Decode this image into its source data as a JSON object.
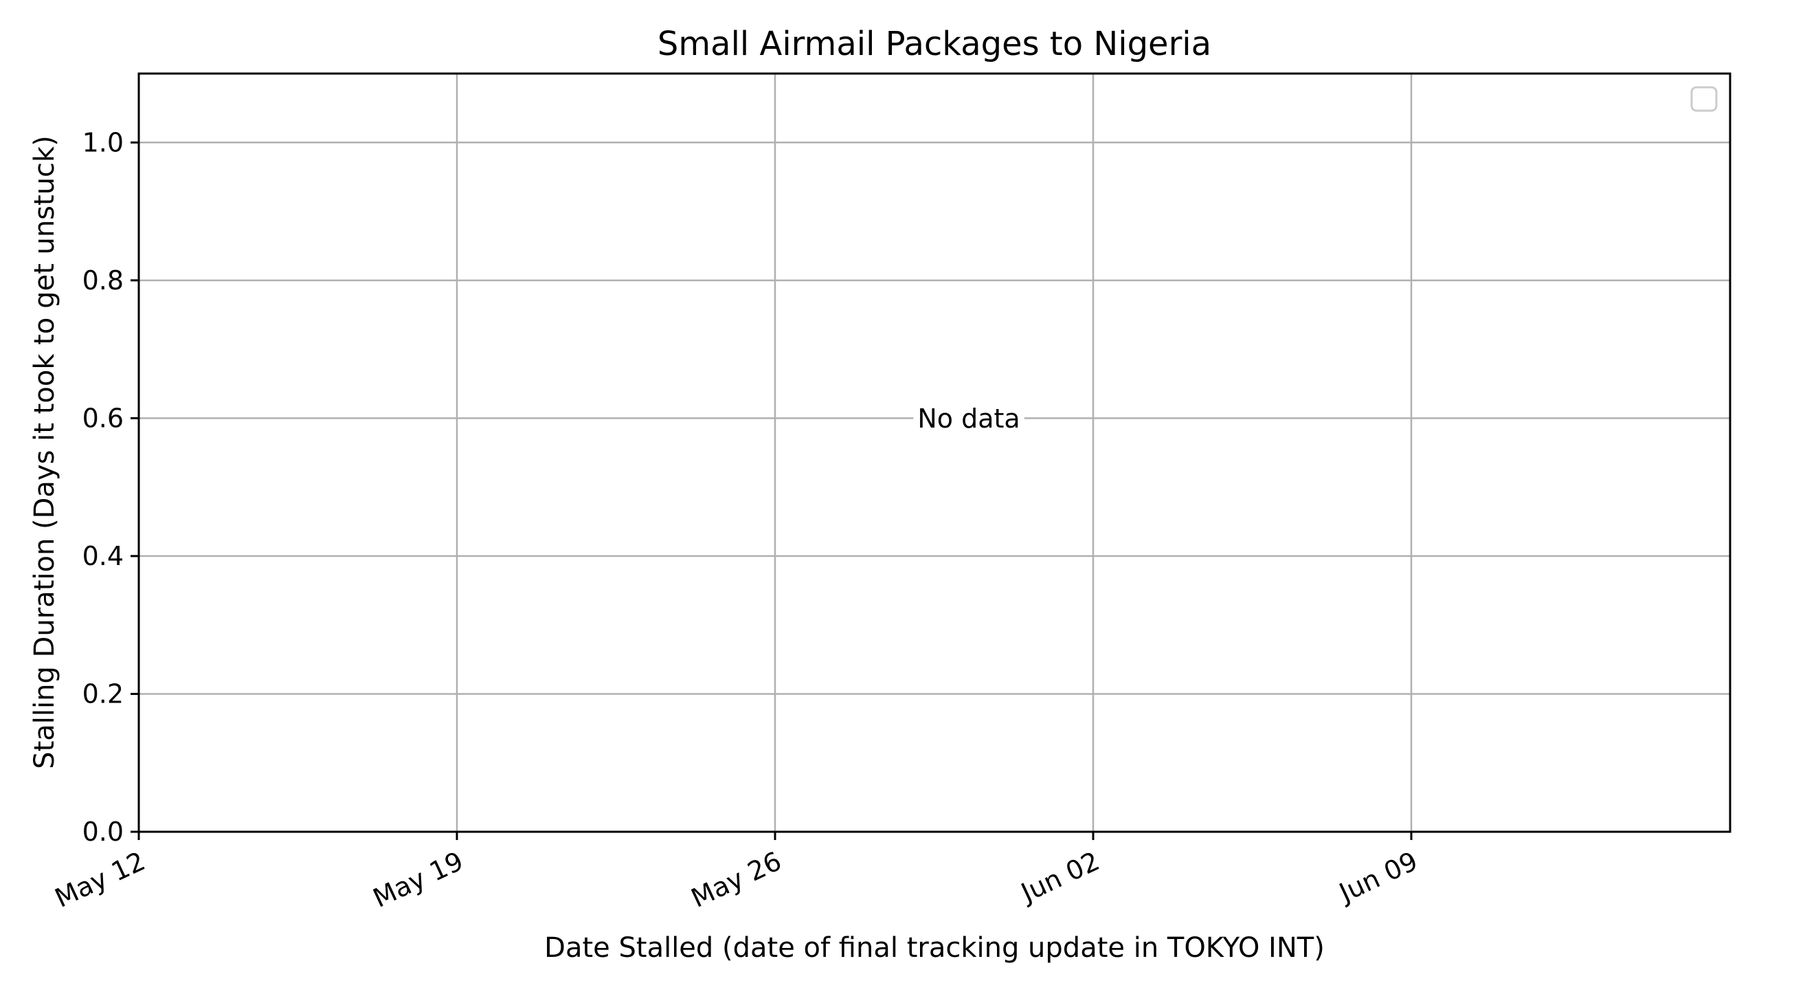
{
  "chart_data": {
    "type": "scatter",
    "title": "Small Airmail Packages to Nigeria",
    "xlabel": "Date Stalled (date of final tracking update in TOKYO INT)",
    "ylabel": "Stalling Duration (Days it took to get unstuck)",
    "x_ticks": [
      "May 12",
      "May 19",
      "May 26",
      "Jun 02",
      "Jun 09"
    ],
    "y_ticks": [
      "0.0",
      "0.2",
      "0.4",
      "0.6",
      "0.8",
      "1.0"
    ],
    "ylim": [
      0,
      1.1
    ],
    "grid": true,
    "legend": "top-right",
    "legend_entries": [],
    "series": [],
    "annotation": "No data"
  },
  "colors": {
    "grid": "#b0b0b0",
    "axes": "#000000",
    "background": "#ffffff"
  }
}
